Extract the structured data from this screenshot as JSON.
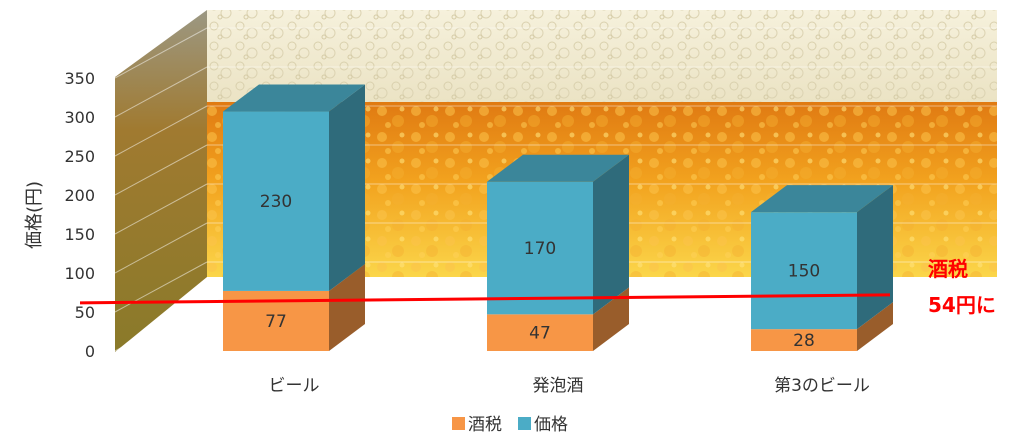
{
  "chart_data": {
    "type": "bar",
    "stacked": true,
    "three_d": true,
    "title": "",
    "xlabel": "",
    "ylabel": "価格(円)",
    "ylim": [
      0,
      350
    ],
    "yticks": [
      0,
      50,
      100,
      150,
      200,
      250,
      300,
      350
    ],
    "grid": true,
    "categories": [
      "ビール",
      "発泡酒",
      "第3のビール"
    ],
    "series": [
      {
        "name": "酒税",
        "values": [
          77,
          47,
          28
        ],
        "color": "#f79646"
      },
      {
        "name": "価格",
        "values": [
          230,
          170,
          150
        ],
        "color": "#4bacc6"
      }
    ],
    "legend_position": "bottom",
    "annotation": {
      "text_line1": "酒税",
      "text_line2": "54円に",
      "reference_value": 54,
      "color": "#ff0000"
    },
    "background": "beer-foam-and-bubbles"
  }
}
